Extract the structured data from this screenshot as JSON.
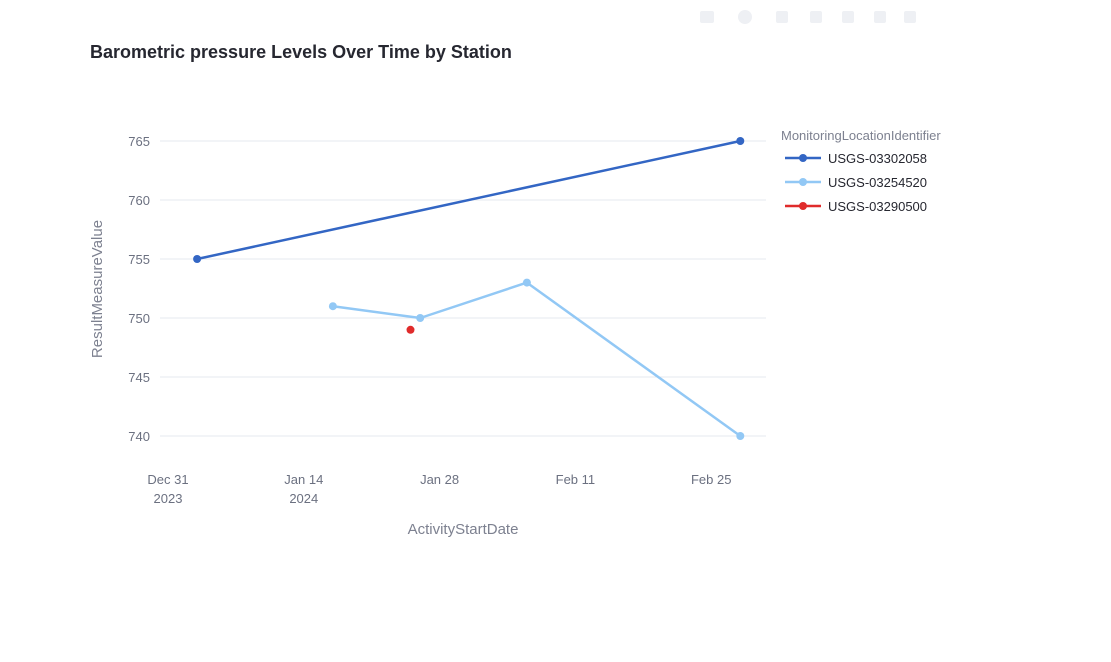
{
  "chart_data": {
    "type": "line",
    "title": "Barometric pressure Levels Over Time by Station",
    "xlabel": "ActivityStartDate",
    "ylabel": "ResultMeasureValue",
    "legend_title": "MonitoringLocationIdentifier",
    "legend_position": "top-right",
    "x_type": "date",
    "xlim": [
      "2023-12-31",
      "2024-02-29"
    ],
    "ylim": [
      738,
      767
    ],
    "grid": true,
    "x_ticks": [
      {
        "date": "2023-12-31",
        "label": "Dec 31",
        "sublabel": "2023"
      },
      {
        "date": "2024-01-14",
        "label": "Jan 14",
        "sublabel": "2024"
      },
      {
        "date": "2024-01-28",
        "label": "Jan 28",
        "sublabel": ""
      },
      {
        "date": "2024-02-11",
        "label": "Feb 11",
        "sublabel": ""
      },
      {
        "date": "2024-02-25",
        "label": "Feb 25",
        "sublabel": ""
      }
    ],
    "y_ticks": [
      740,
      745,
      750,
      755,
      760,
      765
    ],
    "series": [
      {
        "name": "USGS-03302058",
        "color": "#3366c4",
        "points": [
          {
            "x": "2024-01-03",
            "y": 755
          },
          {
            "x": "2024-02-28",
            "y": 765
          }
        ]
      },
      {
        "name": "USGS-03254520",
        "color": "#92c8f5",
        "points": [
          {
            "x": "2024-01-17",
            "y": 751
          },
          {
            "x": "2024-01-26",
            "y": 750
          },
          {
            "x": "2024-02-06",
            "y": 753
          },
          {
            "x": "2024-02-28",
            "y": 740
          }
        ]
      },
      {
        "name": "USGS-03290500",
        "color": "#e02b2b",
        "points": [
          {
            "x": "2024-01-25",
            "y": 749
          }
        ]
      }
    ]
  }
}
